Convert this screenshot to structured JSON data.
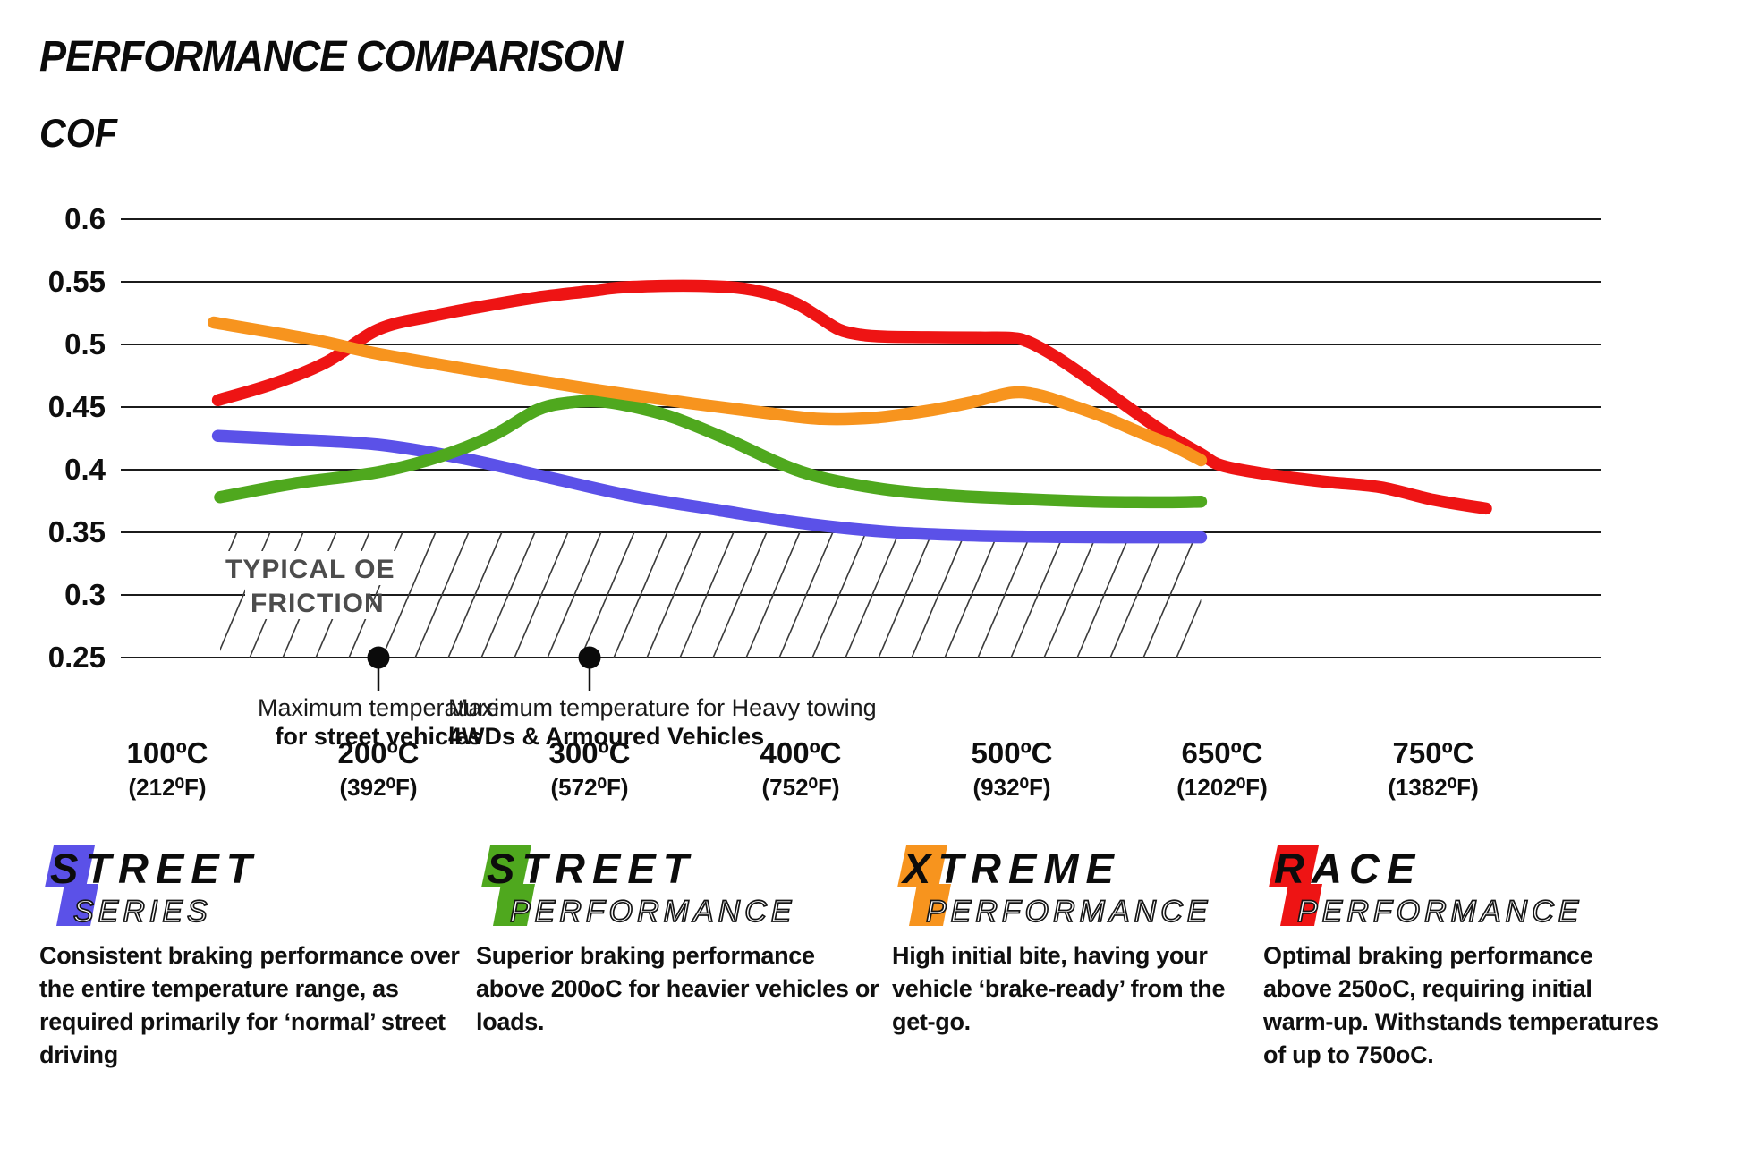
{
  "title": "PERFORMANCE COMPARISON",
  "chart_data": {
    "type": "line",
    "title": "PERFORMANCE COMPARISON",
    "ylabel": "COF",
    "xlabel": "",
    "ylim": [
      0.25,
      0.6
    ],
    "grid": true,
    "legend_position": "bottom",
    "y_ticks": [
      0.6,
      0.55,
      0.5,
      0.45,
      0.4,
      0.35,
      0.3,
      0.25
    ],
    "x_ticks": [
      {
        "t": 100,
        "label": "100ºC",
        "sub": "(212⁰F)"
      },
      {
        "t": 200,
        "label": "200ºC",
        "sub": "(392⁰F)"
      },
      {
        "t": 300,
        "label": "300ºC",
        "sub": "(572⁰F)"
      },
      {
        "t": 400,
        "label": "400ºC",
        "sub": "(752⁰F)"
      },
      {
        "t": 500,
        "label": "500ºC",
        "sub": "(932⁰F)"
      },
      {
        "t": 650,
        "label": "650ºC",
        "sub": "(1202⁰F)"
      },
      {
        "t": 750,
        "label": "750ºC",
        "sub": "(1382⁰F)"
      }
    ],
    "series": [
      {
        "name": "Street Series",
        "color": "#5b51e8",
        "points": [
          [
            124,
            0.427
          ],
          [
            160,
            0.424
          ],
          [
            200,
            0.42
          ],
          [
            240,
            0.409
          ],
          [
            280,
            0.394
          ],
          [
            320,
            0.379
          ],
          [
            360,
            0.368
          ],
          [
            400,
            0.3575
          ],
          [
            440,
            0.3505
          ],
          [
            480,
            0.3475
          ],
          [
            520,
            0.3465
          ],
          [
            570,
            0.346
          ],
          [
            635,
            0.346
          ]
        ]
      },
      {
        "name": "Street Performance",
        "color": "#4fa81e",
        "points": [
          [
            125,
            0.378
          ],
          [
            160,
            0.389
          ],
          [
            200,
            0.398
          ],
          [
            230,
            0.411
          ],
          [
            255,
            0.428
          ],
          [
            275,
            0.4475
          ],
          [
            290,
            0.4535
          ],
          [
            305,
            0.4545
          ],
          [
            320,
            0.4505
          ],
          [
            340,
            0.4415
          ],
          [
            365,
            0.4245
          ],
          [
            400,
            0.3985
          ],
          [
            435,
            0.3855
          ],
          [
            470,
            0.3795
          ],
          [
            510,
            0.3765
          ],
          [
            560,
            0.3745
          ],
          [
            610,
            0.374
          ],
          [
            635,
            0.3745
          ]
        ]
      },
      {
        "name": "Xtreme Performance",
        "color": "#f7941e",
        "points": [
          [
            122,
            0.5175
          ],
          [
            170,
            0.5035
          ],
          [
            200,
            0.4925
          ],
          [
            250,
            0.478
          ],
          [
            300,
            0.4645
          ],
          [
            350,
            0.4525
          ],
          [
            385,
            0.445
          ],
          [
            410,
            0.4405
          ],
          [
            435,
            0.4415
          ],
          [
            460,
            0.447
          ],
          [
            480,
            0.4535
          ],
          [
            500,
            0.4615
          ],
          [
            520,
            0.4595
          ],
          [
            540,
            0.4525
          ],
          [
            565,
            0.4425
          ],
          [
            590,
            0.4305
          ],
          [
            615,
            0.419
          ],
          [
            635,
            0.4075
          ]
        ]
      },
      {
        "name": "Race Performance",
        "color": "#ee1414",
        "points": [
          [
            124,
            0.4555
          ],
          [
            150,
            0.4685
          ],
          [
            175,
            0.4855
          ],
          [
            200,
            0.512
          ],
          [
            225,
            0.5225
          ],
          [
            250,
            0.5305
          ],
          [
            275,
            0.5375
          ],
          [
            300,
            0.5425
          ],
          [
            313,
            0.5452
          ],
          [
            330,
            0.5465
          ],
          [
            350,
            0.5468
          ],
          [
            370,
            0.5452
          ],
          [
            385,
            0.5405
          ],
          [
            398,
            0.5325
          ],
          [
            408,
            0.5225
          ],
          [
            418,
            0.512
          ],
          [
            428,
            0.5078
          ],
          [
            440,
            0.5062
          ],
          [
            460,
            0.5058
          ],
          [
            485,
            0.5055
          ],
          [
            500,
            0.5052
          ],
          [
            512,
            0.5022
          ],
          [
            530,
            0.4915
          ],
          [
            550,
            0.4765
          ],
          [
            572,
            0.459
          ],
          [
            595,
            0.4405
          ],
          [
            615,
            0.4255
          ],
          [
            635,
            0.4125
          ],
          [
            650,
            0.4032
          ],
          [
            672,
            0.3962
          ],
          [
            698,
            0.3905
          ],
          [
            725,
            0.386
          ],
          [
            750,
            0.376
          ],
          [
            775,
            0.369
          ]
        ]
      }
    ],
    "oe_band": {
      "label_line1": "TYPICAL OE",
      "label_line2": "FRICTION",
      "cof_top": 0.35,
      "cof_bottom": 0.25,
      "t_start": 125,
      "t_end": 635
    },
    "annotations": [
      {
        "t": 200,
        "cof": 0.25,
        "line1": "Maximum temperature",
        "line2": "for street vehicles",
        "align": "middle"
      },
      {
        "t": 300,
        "cof": 0.25,
        "line1": "Maximum temperature for Heavy towing",
        "line2": "4WDs & Armoured Vehicles",
        "align": "start"
      }
    ]
  },
  "legend": [
    {
      "word": "STREET",
      "sub": "SERIES",
      "color": "#5b51e8",
      "description": "Consistent braking performance over the entire temperature range, as required primarily for ‘normal’ street driving"
    },
    {
      "word": "STREET",
      "sub": "PERFORMANCE",
      "color": "#4fa81e",
      "description": "Superior braking performance above 200oC for heavier vehicles or loads."
    },
    {
      "word": "XTREME",
      "sub": "PERFORMANCE",
      "color": "#f7941e",
      "description": "High initial bite, having your vehicle ‘brake-ready’ from the get-go."
    },
    {
      "word": "RACE",
      "sub": "PERFORMANCE",
      "color": "#ee1414",
      "description": "Optimal braking performance above 250oC, requiring initial warm-up. Withstands temperatures of up to 750oC."
    }
  ]
}
